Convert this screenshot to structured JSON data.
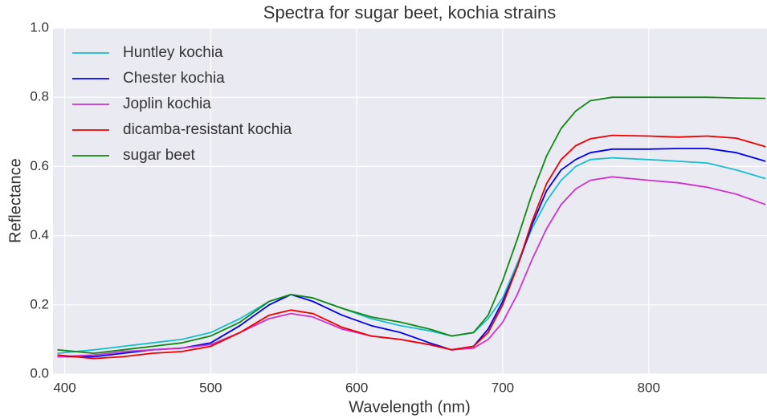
{
  "chart_data": {
    "type": "line",
    "title": "Spectra for sugar beet, kochia strains",
    "x_label": "Wavelength (nm)",
    "y_label": "Reflectance",
    "x": [
      395,
      420,
      440,
      460,
      480,
      500,
      520,
      540,
      555,
      570,
      590,
      610,
      630,
      650,
      665,
      680,
      690,
      700,
      710,
      720,
      730,
      740,
      750,
      760,
      775,
      800,
      820,
      840,
      860,
      880
    ],
    "series": [
      {
        "name": "Huntley kochia",
        "color": "#17becf",
        "values": [
          0.06,
          0.07,
          0.08,
          0.09,
          0.1,
          0.12,
          0.16,
          0.21,
          0.23,
          0.22,
          0.19,
          0.16,
          0.14,
          0.125,
          0.11,
          0.12,
          0.16,
          0.22,
          0.32,
          0.42,
          0.5,
          0.56,
          0.6,
          0.62,
          0.625,
          0.62,
          0.615,
          0.61,
          0.59,
          0.565
        ]
      },
      {
        "name": "Chester kochia",
        "color": "#0000ee",
        "values": [
          0.05,
          0.05,
          0.06,
          0.07,
          0.075,
          0.09,
          0.14,
          0.2,
          0.23,
          0.21,
          0.17,
          0.14,
          0.12,
          0.09,
          0.07,
          0.08,
          0.13,
          0.21,
          0.31,
          0.43,
          0.53,
          0.59,
          0.62,
          0.64,
          0.65,
          0.65,
          0.652,
          0.652,
          0.64,
          0.615
        ]
      },
      {
        "name": "Joplin kochia",
        "color": "#cc33cc",
        "values": [
          0.05,
          0.055,
          0.065,
          0.07,
          0.075,
          0.085,
          0.12,
          0.16,
          0.175,
          0.165,
          0.13,
          0.11,
          0.1,
          0.085,
          0.07,
          0.075,
          0.1,
          0.15,
          0.23,
          0.33,
          0.42,
          0.49,
          0.535,
          0.56,
          0.57,
          0.56,
          0.553,
          0.54,
          0.52,
          0.49
        ]
      },
      {
        "name": "dicamba-resistant kochia",
        "color": "#ee0000",
        "values": [
          0.055,
          0.045,
          0.05,
          0.06,
          0.065,
          0.08,
          0.12,
          0.17,
          0.185,
          0.175,
          0.135,
          0.11,
          0.1,
          0.085,
          0.07,
          0.08,
          0.12,
          0.2,
          0.31,
          0.44,
          0.55,
          0.62,
          0.66,
          0.68,
          0.69,
          0.688,
          0.685,
          0.688,
          0.682,
          0.657
        ]
      },
      {
        "name": "sugar beet",
        "color": "#118811",
        "values": [
          0.07,
          0.06,
          0.07,
          0.08,
          0.09,
          0.11,
          0.15,
          0.21,
          0.23,
          0.22,
          0.19,
          0.165,
          0.15,
          0.13,
          0.11,
          0.12,
          0.17,
          0.27,
          0.39,
          0.52,
          0.63,
          0.71,
          0.76,
          0.79,
          0.8,
          0.8,
          0.8,
          0.8,
          0.798,
          0.797
        ]
      }
    ],
    "xlim": [
      392,
      881
    ],
    "ylim": [
      0,
      1
    ],
    "xticks": [
      400,
      500,
      600,
      700,
      800
    ],
    "yticks": [
      {
        "value": 0,
        "label": "0.0"
      },
      0.2,
      0.4,
      0.6,
      0.8,
      {
        "value": 1,
        "label": "1.0"
      }
    ],
    "grid": true,
    "legend": "upper left"
  }
}
